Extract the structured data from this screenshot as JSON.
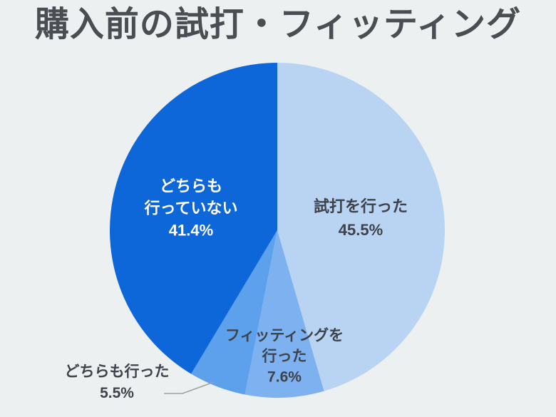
{
  "title": "購入前の試打・フィッティング",
  "background_color": "#edf0f1",
  "title_color": "#4a4d52",
  "label_text_color": "#3e434b",
  "leader_line_color": "#9aa0a8",
  "chart_data": {
    "type": "pie",
    "title": "購入前の試打・フィッティング",
    "start_angle_deg": 0,
    "direction": "clockwise",
    "legend": "none",
    "slices": [
      {
        "label": "試打を行った",
        "value": 45.5,
        "pct_text": "45.5%",
        "color": "#b9d3f3",
        "label_lines": [
          "試打を行った",
          "45.5%"
        ],
        "label_text_color": "#3e434b",
        "label_position": "inside"
      },
      {
        "label": "フィッティングを行った",
        "value": 7.6,
        "pct_text": "7.6%",
        "color": "#7db1f0",
        "label_lines": [
          "フィッティングを",
          "行った",
          "7.6%"
        ],
        "label_text_color": "#3e434b",
        "label_position": "inside"
      },
      {
        "label": "どちらも行った",
        "value": 5.5,
        "pct_text": "5.5%",
        "color": "#5da1ed",
        "label_lines": [
          "どちらも行った",
          "5.5%"
        ],
        "label_text_color": "#3e434b",
        "label_position": "outside-left",
        "leader_line": true
      },
      {
        "label": "どちらも行っていない",
        "value": 41.4,
        "pct_text": "41.4%",
        "color": "#0e67d9",
        "label_lines": [
          "どちらも",
          "行っていない",
          "41.4%"
        ],
        "label_text_color": "#ffffff",
        "label_position": "inside"
      }
    ]
  }
}
